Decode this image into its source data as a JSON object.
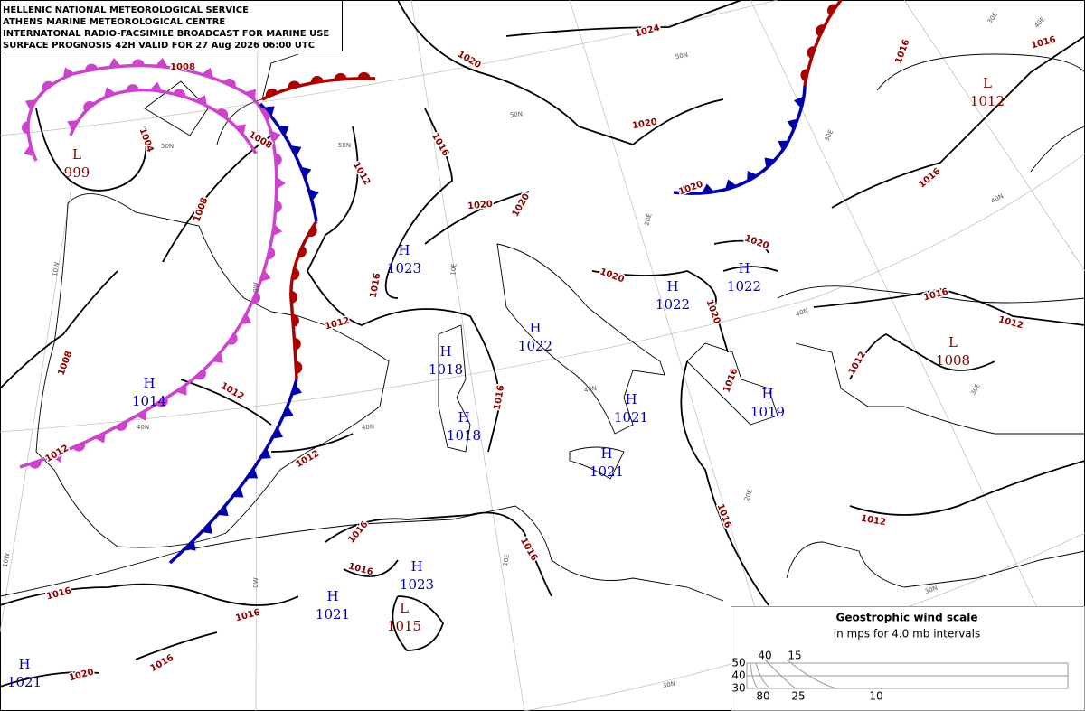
{
  "header": {
    "lines": [
      "HELLENIC NATIONAL METEOROLOGICAL SERVICE",
      "ATHENS MARINE METEOROLOGICAL CENTRE",
      "INTERNATONAL RADIO-FACSIMILE BROADCAST FOR MARINE USE",
      "SURFACE PROGNOSIS 42H VALID FOR 27 Aug 2026 06:00 UTC"
    ]
  },
  "pressure_centers": [
    {
      "type": "L",
      "value": 999,
      "color": "#8b0000"
    },
    {
      "type": "H",
      "value": 1014,
      "color": "#0000aa"
    },
    {
      "type": "H",
      "value": 1023,
      "color": "#0000aa"
    },
    {
      "type": "H",
      "value": 1018,
      "color": "#0000aa"
    },
    {
      "type": "H",
      "value": 1018,
      "color": "#0000aa"
    },
    {
      "type": "H",
      "value": 1022,
      "color": "#0000aa"
    },
    {
      "type": "H",
      "value": 1021,
      "color": "#0000aa"
    },
    {
      "type": "H",
      "value": 1021,
      "color": "#0000aa"
    },
    {
      "type": "H",
      "value": 1022,
      "color": "#0000aa"
    },
    {
      "type": "H",
      "value": 1022,
      "color": "#0000aa"
    },
    {
      "type": "H",
      "value": 1019,
      "color": "#0000aa"
    },
    {
      "type": "L",
      "value": 1008,
      "color": "#8b0000"
    },
    {
      "type": "L",
      "value": 1012,
      "color": "#8b0000"
    },
    {
      "type": "H",
      "value": 1023,
      "color": "#0000aa"
    },
    {
      "type": "H",
      "value": 1021,
      "color": "#0000aa"
    },
    {
      "type": "L",
      "value": 1015,
      "color": "#8b0000"
    },
    {
      "type": "H",
      "value": 1021,
      "color": "#0000aa"
    }
  ],
  "isobar_labels": [
    1008,
    1004,
    1008,
    1008,
    1012,
    1016,
    1020,
    1024,
    1020,
    1016,
    1016,
    1016,
    1020,
    1020,
    1016,
    1012,
    1020,
    1020,
    1020,
    1020,
    1016,
    1012,
    1012,
    1016,
    1008,
    1012,
    1016,
    1012,
    1012,
    1016,
    1016,
    1016,
    1016,
    1012,
    1016,
    1016,
    1016,
    1020
  ],
  "graticule_labels": [
    "50N",
    "50N",
    "50N",
    "50N",
    "40N",
    "40N",
    "40N",
    "40N",
    "40N",
    "30N",
    "30N",
    "10W",
    "10W",
    "0W",
    "0W",
    "10E",
    "10E",
    "20E",
    "20E",
    "30E",
    "30E",
    "30E",
    "40E"
  ],
  "wind_scale": {
    "title": "Geostrophic wind scale",
    "subtitle": "in mps for 4.0 mb intervals",
    "top_labels": [
      "40",
      "15"
    ],
    "left_labels": [
      "50",
      "40",
      "30"
    ],
    "bottom_labels": [
      "80",
      "25",
      "10"
    ]
  }
}
